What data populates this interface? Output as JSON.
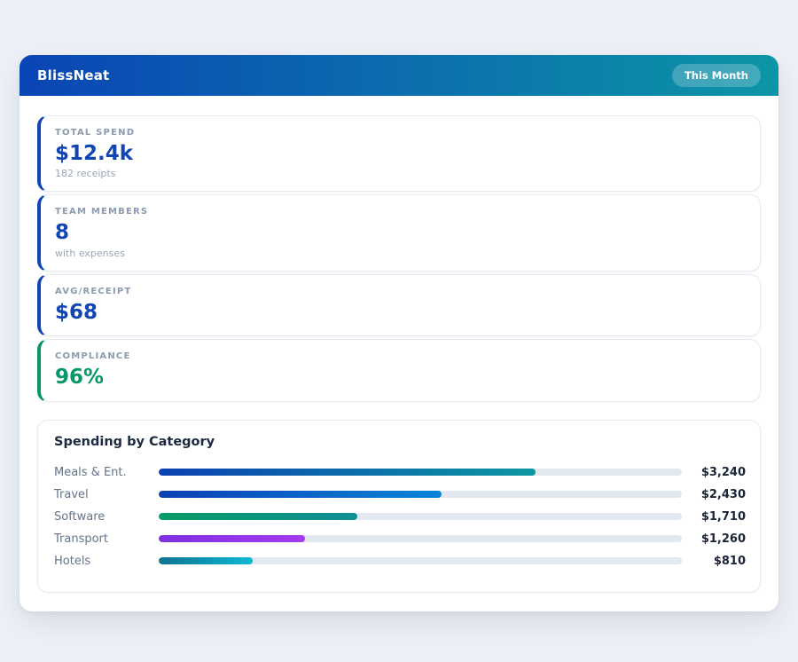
{
  "theme": {
    "header_gradient_start": "#0a45b5",
    "header_gradient_end": "#0d95a6",
    "page_background": "#edf1f7",
    "track_color": "#e2e8f0",
    "blue_accent": "#1245b4",
    "green_accent": "#079669"
  },
  "header": {
    "title": "BlissNeat",
    "period_badge": "This Month"
  },
  "stats": [
    {
      "label": "TOTAL SPEND",
      "value": "$12.4k",
      "subtext": "182 receipts",
      "accent": "#1245b4",
      "value_color": "#1245b4"
    },
    {
      "label": "TEAM MEMBERS",
      "value": "8",
      "subtext": "with expenses",
      "accent": "#1245b4",
      "value_color": "#1245b4"
    },
    {
      "label": "AVG/RECEIPT",
      "value": "$68",
      "subtext": "",
      "accent": "#1245b4",
      "value_color": "#1245b4"
    },
    {
      "label": "COMPLIANCE",
      "value": "96%",
      "subtext": "",
      "accent": "#079669",
      "value_color": "#079669"
    }
  ],
  "chart": {
    "title": "Spending by Category",
    "rows": [
      {
        "label": "Meals & Ent.",
        "value_label": "$3,240",
        "pct": 72,
        "colors": [
          "#0b41b2",
          "#0d97a2"
        ]
      },
      {
        "label": "Travel",
        "value_label": "$2,430",
        "pct": 54,
        "colors": [
          "#0b41b2",
          "#0a84d9"
        ]
      },
      {
        "label": "Software",
        "value_label": "$1,710",
        "pct": 38,
        "colors": [
          "#089b66",
          "#0e8f96"
        ]
      },
      {
        "label": "Transport",
        "value_label": "$1,260",
        "pct": 28,
        "colors": [
          "#7e2fe0",
          "#a43bef"
        ]
      },
      {
        "label": "Hotels",
        "value_label": "$810",
        "pct": 18,
        "colors": [
          "#0e7490",
          "#0cb8d6"
        ]
      }
    ]
  },
  "chart_data": {
    "type": "bar",
    "orientation": "horizontal",
    "title": "Spending by Category",
    "categories": [
      "Meals & Ent.",
      "Travel",
      "Software",
      "Transport",
      "Hotels"
    ],
    "values": [
      3240,
      2430,
      1710,
      1260,
      810
    ],
    "value_labels": [
      "$3,240",
      "$2,430",
      "$1,710",
      "$1,260",
      "$810"
    ],
    "xlim": [
      0,
      4500
    ],
    "grid": false,
    "legend": false
  }
}
